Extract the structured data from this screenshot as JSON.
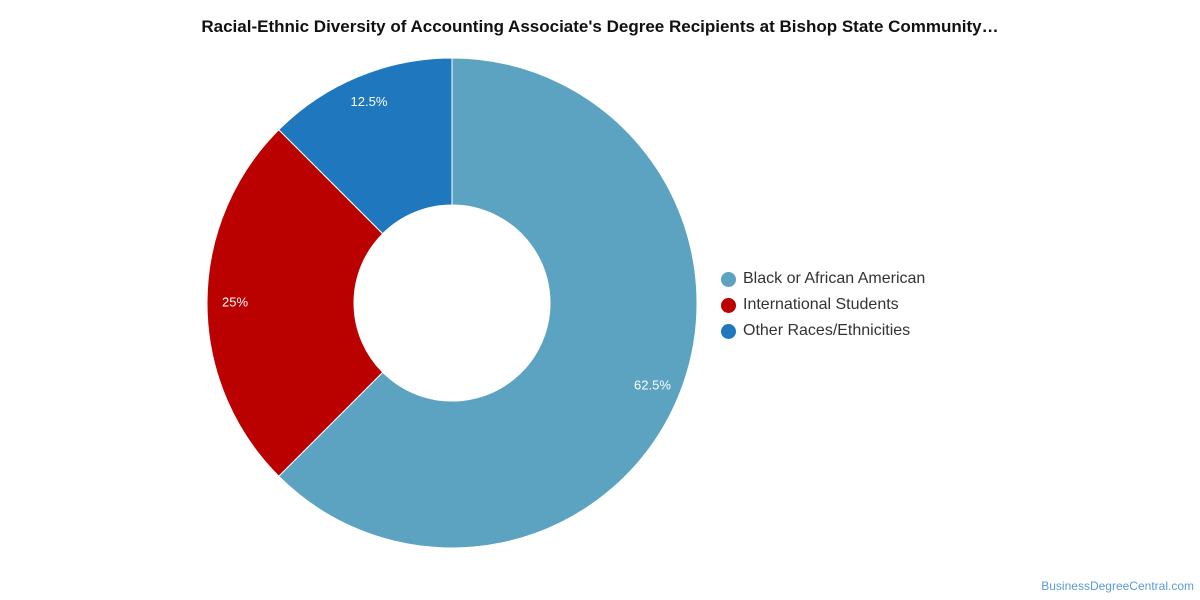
{
  "chart_data": {
    "type": "pie",
    "style": "donut",
    "title": "Racial-Ethnic Diversity of Accounting Associate's Degree Recipients at Bishop State Community…",
    "slices": [
      {
        "label": "Black or African American",
        "value": 62.5,
        "display": "62.5%",
        "color": "#5ba3c0"
      },
      {
        "label": "International Students",
        "value": 25,
        "display": "25%",
        "color": "#bb0000"
      },
      {
        "label": "Other Races/Ethnicities",
        "value": 12.5,
        "display": "12.5%",
        "color": "#1f77bd"
      }
    ],
    "legend_position": "right"
  },
  "footer": {
    "source": "BusinessDegreeCentral.com"
  }
}
